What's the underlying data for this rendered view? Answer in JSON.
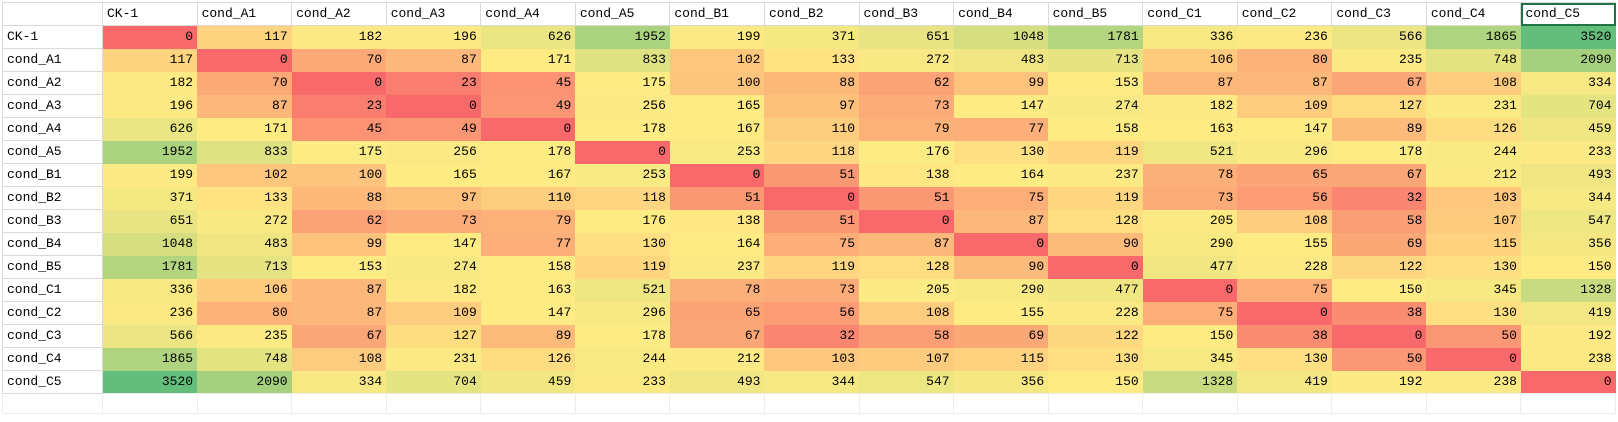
{
  "chart_data": {
    "type": "heatmap",
    "title": "",
    "columns": [
      "CK-1",
      "cond_A1",
      "cond_A2",
      "cond_A3",
      "cond_A4",
      "cond_A5",
      "cond_B1",
      "cond_B2",
      "cond_B3",
      "cond_B4",
      "cond_B5",
      "cond_C1",
      "cond_C2",
      "cond_C3",
      "cond_C4",
      "cond_C5"
    ],
    "rows": [
      "CK-1",
      "cond_A1",
      "cond_A2",
      "cond_A3",
      "cond_A4",
      "cond_A5",
      "cond_B1",
      "cond_B2",
      "cond_B3",
      "cond_B4",
      "cond_B5",
      "cond_C1",
      "cond_C2",
      "cond_C3",
      "cond_C4",
      "cond_C5"
    ],
    "matrix": [
      [
        0,
        117,
        182,
        196,
        626,
        1952,
        199,
        371,
        651,
        1048,
        1781,
        336,
        236,
        566,
        1865,
        3520
      ],
      [
        117,
        0,
        70,
        87,
        171,
        833,
        102,
        133,
        272,
        483,
        713,
        106,
        80,
        235,
        748,
        2090
      ],
      [
        182,
        70,
        0,
        23,
        45,
        175,
        100,
        88,
        62,
        99,
        153,
        87,
        87,
        67,
        108,
        334
      ],
      [
        196,
        87,
        23,
        0,
        49,
        256,
        165,
        97,
        73,
        147,
        274,
        182,
        109,
        127,
        231,
        704
      ],
      [
        626,
        171,
        45,
        49,
        0,
        178,
        167,
        110,
        79,
        77,
        158,
        163,
        147,
        89,
        126,
        459
      ],
      [
        1952,
        833,
        175,
        256,
        178,
        0,
        253,
        118,
        176,
        130,
        119,
        521,
        296,
        178,
        244,
        233
      ],
      [
        199,
        102,
        100,
        165,
        167,
        253,
        0,
        51,
        138,
        164,
        237,
        78,
        65,
        67,
        212,
        493
      ],
      [
        371,
        133,
        88,
        97,
        110,
        118,
        51,
        0,
        51,
        75,
        119,
        73,
        56,
        32,
        103,
        344
      ],
      [
        651,
        272,
        62,
        73,
        79,
        176,
        138,
        51,
        0,
        87,
        128,
        205,
        108,
        58,
        107,
        547
      ],
      [
        1048,
        483,
        99,
        147,
        77,
        130,
        164,
        75,
        87,
        0,
        90,
        290,
        155,
        69,
        115,
        356
      ],
      [
        1781,
        713,
        153,
        274,
        158,
        119,
        237,
        119,
        128,
        90,
        0,
        477,
        228,
        122,
        130,
        150
      ],
      [
        336,
        106,
        87,
        182,
        163,
        521,
        78,
        73,
        205,
        290,
        477,
        0,
        75,
        150,
        345,
        1328
      ],
      [
        236,
        80,
        87,
        109,
        147,
        296,
        65,
        56,
        108,
        155,
        228,
        75,
        0,
        38,
        130,
        419
      ],
      [
        566,
        235,
        67,
        127,
        89,
        178,
        67,
        32,
        58,
        69,
        122,
        150,
        38,
        0,
        50,
        192
      ],
      [
        1865,
        748,
        108,
        231,
        126,
        244,
        212,
        103,
        107,
        115,
        130,
        345,
        130,
        50,
        0,
        238
      ],
      [
        3520,
        2090,
        334,
        704,
        459,
        233,
        493,
        344,
        547,
        356,
        150,
        1328,
        419,
        192,
        238,
        0
      ]
    ],
    "min_value": 0,
    "max_value": 3520,
    "color_scale": {
      "min_color": "#F8696B",
      "mid_color": "#FFEB84",
      "max_color": "#63BE7B",
      "midpoint": "50th percentile"
    },
    "grid": true,
    "legend": "none"
  },
  "selection": {
    "selected_column_header": "cond_C5"
  }
}
